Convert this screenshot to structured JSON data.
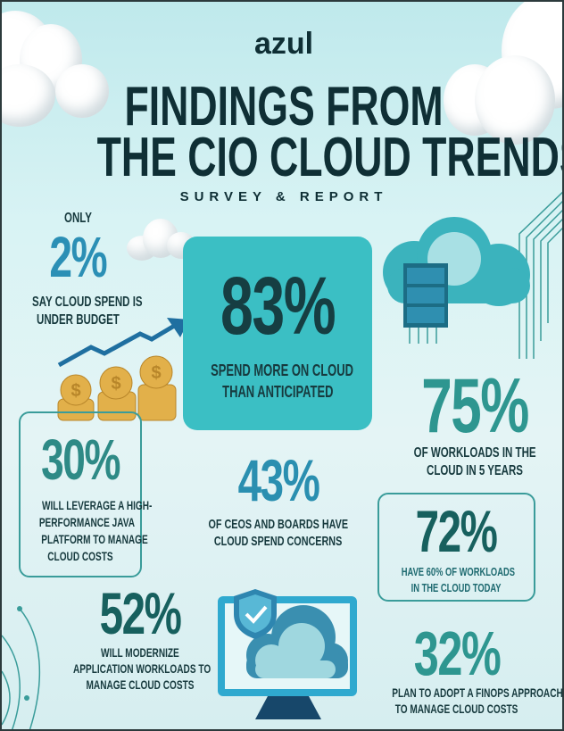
{
  "header": {
    "logo": "azul",
    "title_line1": "FINDINGS FROM",
    "title_line2": "THE CIO CLOUD TRENDS",
    "subtitle": "SURVEY & REPORT"
  },
  "stats": [
    {
      "prefix": "ONLY",
      "value": "2%",
      "text": [
        "SAY CLOUD SPEND IS",
        "UNDER BUDGET"
      ],
      "color": "#2b8fb5"
    },
    {
      "value": "83%",
      "text": [
        "SPEND MORE ON CLOUD",
        "THAN ANTICIPATED"
      ],
      "color": "#163e42"
    },
    {
      "value": "75%",
      "text": [
        "OF WORKLOADS IN THE",
        "CLOUD IN 5 YEARS"
      ],
      "color": "#2e9690"
    },
    {
      "value": "30%",
      "text": [
        "WILL LEVERAGE A HIGH-",
        "PERFORMANCE JAVA",
        "PLATFORM TO MANAGE",
        "CLOUD COSTS"
      ],
      "color": "#2e8a86"
    },
    {
      "value": "43%",
      "text": [
        "OF CEOS AND BOARDS HAVE",
        "CLOUD SPEND CONCERNS"
      ],
      "color": "#2a8fb0"
    },
    {
      "value": "72%",
      "text": [
        "HAVE 60% OF WORKLOADS",
        "IN THE CLOUD TODAY"
      ],
      "color": "#17605e"
    },
    {
      "value": "52%",
      "text": [
        "WILL MODERNIZE",
        "APPLICATION WORKLOADS TO",
        "MANAGE CLOUD COSTS"
      ],
      "color": "#17605e"
    },
    {
      "value": "32%",
      "text": [
        "PLAN TO ADOPT A FINOPS APPROACH",
        "TO MANAGE CLOUD COSTS"
      ],
      "color": "#2e9690"
    }
  ],
  "colors": {
    "title": "#0f2f35",
    "highlight_box": "#3bbfc4",
    "border": "#3a9c9a"
  },
  "icons": [
    "cloud-icon",
    "cloud-server-icon",
    "trend-arrow-icon",
    "coins-icon",
    "monitor-cloud-shield-icon",
    "circuit-lines-icon"
  ]
}
